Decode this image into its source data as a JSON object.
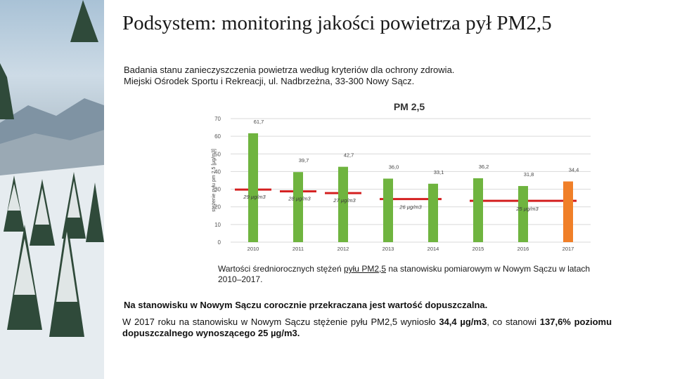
{
  "slide": {
    "title": "Podsystem: monitoring jakości powietrza   pył PM2,5",
    "subtitle_line1": "Badania stanu zanieczyszczenia powietrza według kryteriów dla ochrony zdrowia.",
    "subtitle_line2": "Miejski Ośrodek Sportu i Rekreacji, ul. Nadbrzeżna, 33-300 Nowy Sącz.",
    "caption_before": "Wartości średniorocznych stężeń ",
    "caption_link": "pyłu PM2,5",
    "caption_after": " na stanowisku pomiarowym w Nowym Sączu w latach 2010–2017.",
    "bold_statement": "Na stanowisku w Nowym Sączu corocznie przekraczana jest wartość dopuszczalna.",
    "para_part1": "W 2017 roku na stanowisku w Nowym Sączu stężenie pyłu PM2,5 wyniosło ",
    "para_value": "34,4 µg/m3",
    "para_part2": ", co stanowi ",
    "para_percent": "137,6%",
    "para_part3": " poziomu dopuszczalnego wynoszącego 25 µg/m3."
  },
  "colors": {
    "bar_green": "#6fb43f",
    "bar_orange": "#f07f28",
    "limit_red": "#d42020",
    "grid": "#d9d9d9",
    "photo_dark": "#2f4a3a"
  },
  "chart_data": {
    "type": "bar",
    "title": "PM 2,5",
    "ylabel": "stężenie pyłu pm 2,5 [µg/m3]",
    "xlabel": "",
    "ylim": [
      0,
      70
    ],
    "yticks": [
      "0",
      "10",
      "20",
      "30",
      "40",
      "50",
      "60",
      "70"
    ],
    "categories": [
      "2010",
      "2011",
      "2012",
      "2013",
      "2014",
      "2015",
      "2016",
      "2017"
    ],
    "values": [
      61.7,
      39.7,
      42.7,
      36.0,
      33.1,
      36.2,
      31.8,
      34.4
    ],
    "value_labels": [
      "61,7",
      "39,7",
      "42,7",
      "36,0",
      "33,1",
      "36,2",
      "31,8",
      "34,4"
    ],
    "highlight_category": "2017",
    "limit_values": [
      {
        "value": 29,
        "label": "29 µg/m3",
        "from": "2010",
        "to": "2010"
      },
      {
        "value": 28,
        "label": "28 µg/m3",
        "from": "2011",
        "to": "2011"
      },
      {
        "value": 27,
        "label": "27 µg/m3",
        "from": "2012",
        "to": "2012"
      },
      {
        "value": 26,
        "label": "26 µg/m3",
        "from": "2013",
        "to": "2014"
      },
      {
        "value": 25,
        "label": "25 µg/m3",
        "from": "2015",
        "to": "2017"
      }
    ],
    "grid": true,
    "legend": "none"
  }
}
